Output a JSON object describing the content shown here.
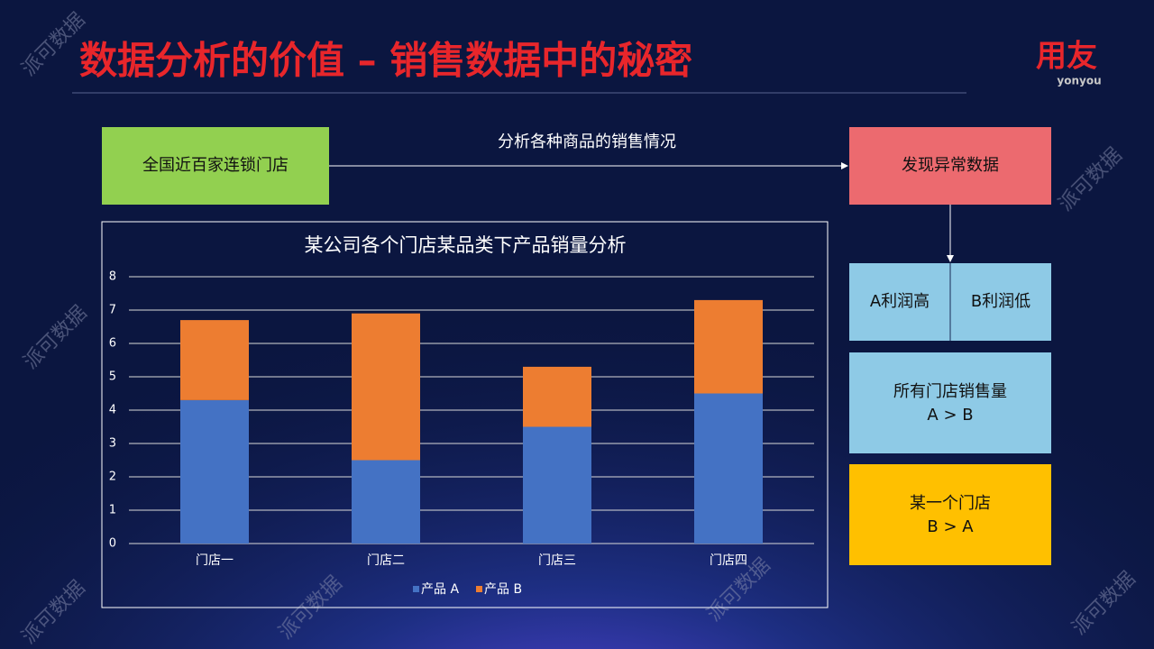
{
  "header": {
    "title": "数据分析的价值 – 销售数据中的秘密",
    "logo": "用友",
    "logo_sub": "yonyou"
  },
  "watermark": "派可数据",
  "flow": {
    "source": "全国近百家连锁门店",
    "arrow_label": "分析各种商品的销售情况",
    "result": "发现异常数据",
    "profit_a": "A利润高",
    "profit_b": "B利润低",
    "all_stores": [
      "所有门店销售量",
      "A > B"
    ],
    "one_store": [
      "某一个门店",
      "B > A"
    ]
  },
  "chart_data": {
    "type": "stacked_bar",
    "title": "某公司各个门店某品类下产品销量分析",
    "categories": [
      "门店一",
      "门店二",
      "门店三",
      "门店四"
    ],
    "series": [
      {
        "name": "产品 A",
        "color": "#4472c4",
        "values": [
          4.3,
          2.5,
          3.5,
          4.5
        ]
      },
      {
        "name": "产品 B",
        "color": "#ed7d31",
        "values": [
          2.4,
          4.4,
          1.8,
          2.8
        ]
      }
    ],
    "ylim": [
      0,
      8
    ],
    "yticks": [
      0,
      1,
      2,
      3,
      4,
      5,
      6,
      7,
      8
    ],
    "grid": true,
    "legend": "bottom"
  }
}
